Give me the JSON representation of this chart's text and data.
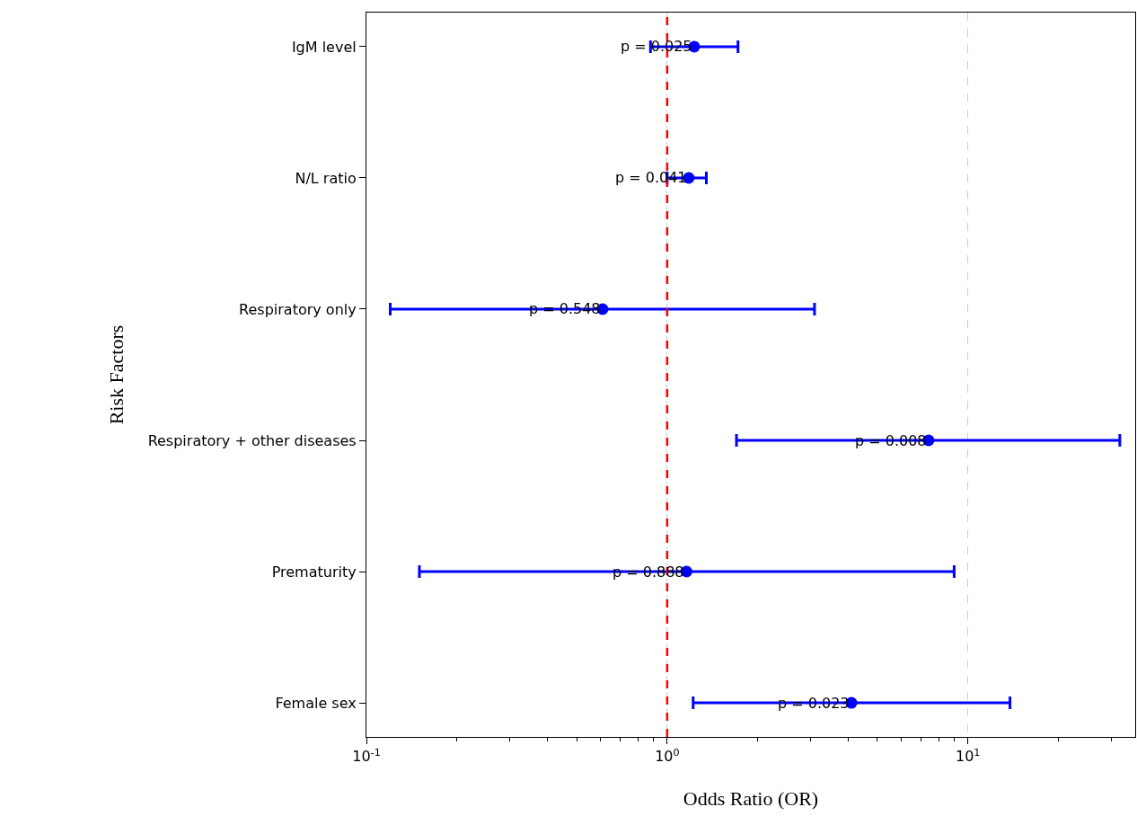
{
  "chart_data": {
    "type": "scatter",
    "orientation": "horizontal",
    "xlabel": "Odds Ratio (OR)",
    "ylabel": "Risk Factors",
    "categories": [
      "IgM level",
      "N/L ratio",
      "Respiratory only",
      "Respiratory + other diseases",
      "Prematurity",
      "Female sex"
    ],
    "series": [
      {
        "color": "#0000ff",
        "values": [
          1.23,
          1.18,
          0.61,
          7.4,
          1.16,
          4.1
        ],
        "errors": [
          [
            0.88,
            1.72
          ],
          [
            1.0,
            1.35
          ],
          [
            0.12,
            3.09
          ],
          [
            1.7,
            32
          ],
          [
            0.15,
            9.0
          ],
          [
            1.22,
            13.8
          ]
        ]
      }
    ],
    "marker": "circle",
    "log": "x",
    "xlim": [
      0.1,
      36
    ],
    "xticks": [
      {
        "value": 0.1,
        "label": "10$^{-1}$"
      },
      {
        "value": 1,
        "label": "10$^{0}$"
      },
      {
        "value": 10,
        "label": "10$^{1}$"
      }
    ],
    "grid": "x",
    "ref_lines": [
      {
        "axis": "x",
        "value": 1,
        "color": "#ff0000",
        "line_style": "dashed"
      }
    ],
    "annotations": [
      {
        "text": "p = 0.025",
        "x": 1.23,
        "y": "IgM level"
      },
      {
        "text": "p = 0.041",
        "x": 1.18,
        "y": "N/L ratio"
      },
      {
        "text": "p = 0.548",
        "x": 0.61,
        "y": "Respiratory only"
      },
      {
        "text": "p = 0.008",
        "x": 7.4,
        "y": "Respiratory + other diseases"
      },
      {
        "text": "p = 0.888",
        "x": 1.16,
        "y": "Prematurity"
      },
      {
        "text": "p = 0.023",
        "x": 4.1,
        "y": "Female sex"
      }
    ]
  }
}
